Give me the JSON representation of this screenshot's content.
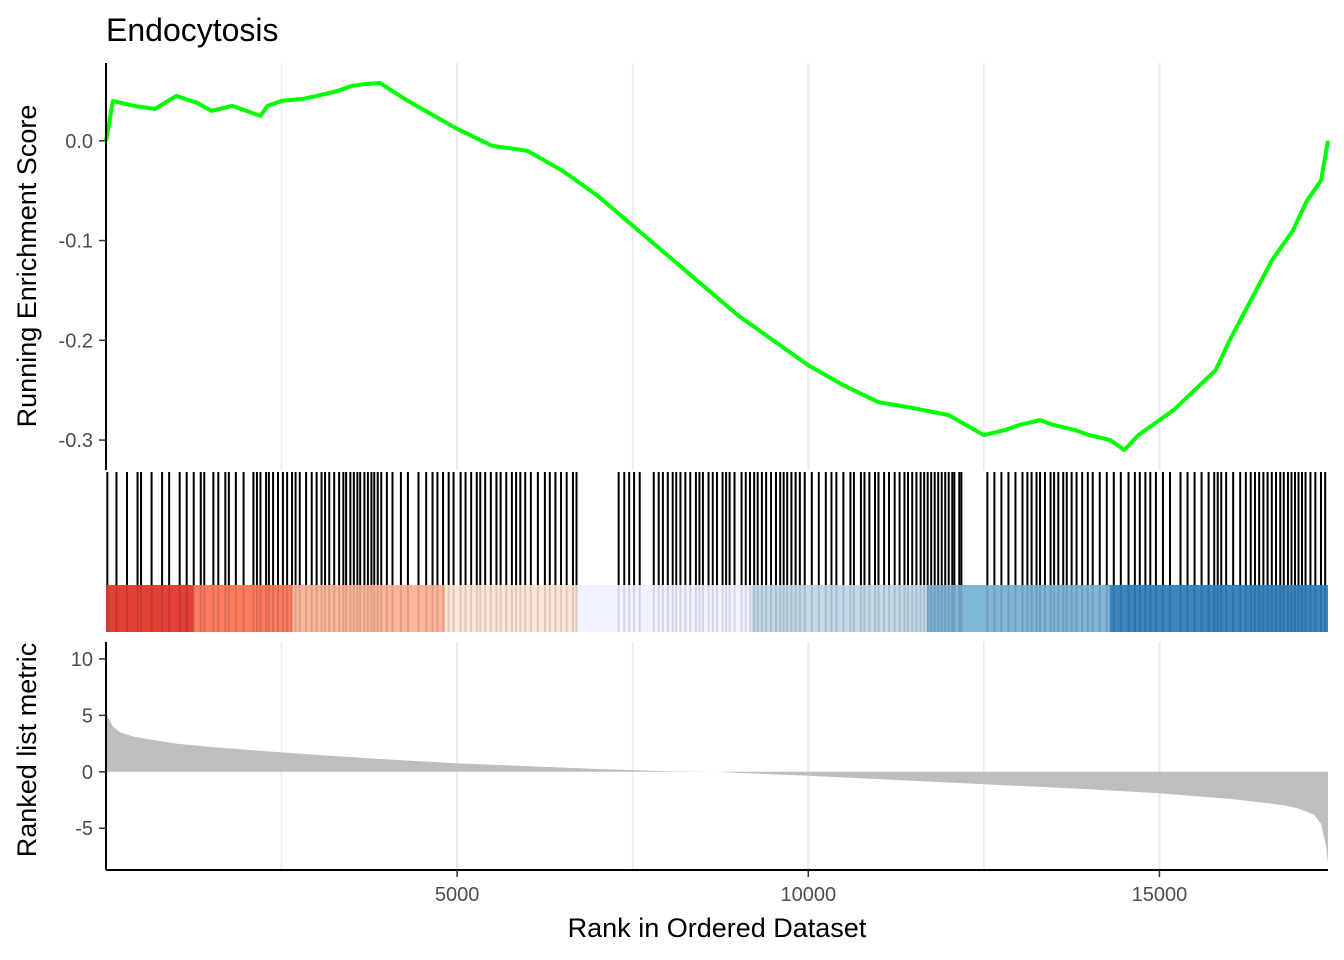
{
  "chart_data": {
    "type": "line",
    "title": "Endocytosis",
    "xlabel": "Rank in Ordered Dataset",
    "xlim": [
      1,
      17400
    ],
    "xticks": [
      5000,
      10000,
      15000
    ],
    "xtick_labels": [
      "5000",
      "10000",
      "15000"
    ],
    "grid": "vertical major and minor lines",
    "panels": [
      {
        "name": "running_enrichment_score",
        "ylabel": "Running Enrichment Score",
        "ylim": [
          -0.33,
          0.078
        ],
        "yticks": [
          0.0,
          -0.1,
          -0.2,
          -0.3
        ],
        "ytick_labels": [
          "0.0",
          "-0.1",
          "-0.2",
          "-0.3"
        ],
        "line_color": "#00FF00",
        "x": [
          1,
          100,
          400,
          700,
          1000,
          1300,
          1500,
          1800,
          2000,
          2200,
          2300,
          2500,
          2800,
          3000,
          3300,
          3500,
          3700,
          3900,
          4300,
          4600,
          5000,
          5500,
          6000,
          6500,
          7000,
          7500,
          8000,
          8500,
          9000,
          9500,
          10000,
          10500,
          11000,
          11500,
          12000,
          12500,
          12800,
          13000,
          13300,
          13500,
          13800,
          14000,
          14300,
          14500,
          14700,
          14900,
          15200,
          15500,
          15800,
          16000,
          16300,
          16600,
          16900,
          17100,
          17300,
          17400
        ],
        "y": [
          0.0,
          0.04,
          0.035,
          0.032,
          0.045,
          0.038,
          0.03,
          0.035,
          0.03,
          0.025,
          0.035,
          0.04,
          0.042,
          0.045,
          0.05,
          0.055,
          0.057,
          0.058,
          0.04,
          0.028,
          0.012,
          -0.005,
          -0.01,
          -0.03,
          -0.055,
          -0.085,
          -0.115,
          -0.145,
          -0.175,
          -0.2,
          -0.225,
          -0.245,
          -0.262,
          -0.268,
          -0.275,
          -0.295,
          -0.29,
          -0.285,
          -0.28,
          -0.285,
          -0.29,
          -0.295,
          -0.3,
          -0.31,
          -0.295,
          -0.285,
          -0.27,
          -0.25,
          -0.23,
          -0.2,
          -0.16,
          -0.12,
          -0.09,
          -0.06,
          -0.04,
          0.0
        ]
      },
      {
        "name": "gene_hits",
        "description_marks": "vertical tick at rank of each gene in set",
        "hit_ranks": [
          20,
          150,
          300,
          450,
          500,
          650,
          800,
          900,
          1050,
          1150,
          1250,
          1350,
          1400,
          1530,
          1600,
          1700,
          1750,
          1850,
          1960,
          2100,
          2150,
          2200,
          2280,
          2320,
          2380,
          2450,
          2520,
          2580,
          2650,
          2700,
          2760,
          2850,
          2930,
          3000,
          3070,
          3120,
          3180,
          3250,
          3320,
          3380,
          3420,
          3480,
          3530,
          3580,
          3620,
          3680,
          3730,
          3780,
          3820,
          3870,
          3920,
          4000,
          4080,
          4200,
          4300,
          4450,
          4560,
          4650,
          4720,
          4800,
          4880,
          4950,
          5050,
          5120,
          5200,
          5280,
          5330,
          5400,
          5480,
          5560,
          5620,
          5700,
          5780,
          5840,
          5900,
          5970,
          6050,
          6150,
          6250,
          6320,
          6400,
          6480,
          6560,
          6650,
          6700,
          7300,
          7380,
          7450,
          7520,
          7600,
          7800,
          7870,
          7930,
          8000,
          8070,
          8120,
          8180,
          8250,
          8320,
          8400,
          8450,
          8500,
          8580,
          8640,
          8700,
          8780,
          8830,
          8880,
          8950,
          9050,
          9110,
          9170,
          9230,
          9280,
          9340,
          9400,
          9470,
          9540,
          9600,
          9650,
          9700,
          9760,
          9820,
          9880,
          9950,
          10050,
          10150,
          10250,
          10330,
          10400,
          10500,
          10600,
          10650,
          10750,
          10800,
          10870,
          10950,
          11000,
          11080,
          11150,
          11230,
          11300,
          11370,
          11420,
          11480,
          11540,
          11600,
          11650,
          11700,
          11750,
          11800,
          11850,
          11900,
          11950,
          12000,
          12050,
          12080,
          12150,
          12180,
          12550,
          12650,
          12750,
          12850,
          12950,
          13050,
          13120,
          13180,
          13250,
          13300,
          13370,
          13450,
          13500,
          13560,
          13630,
          13680,
          13750,
          13820,
          13900,
          13980,
          14050,
          14150,
          14250,
          14350,
          14450,
          14560,
          14650,
          14720,
          14800,
          14870,
          14950,
          15050,
          15150,
          15300,
          15400,
          15500,
          15600,
          15700,
          15780,
          15830,
          15880,
          15950,
          16050,
          16150,
          16230,
          16300,
          16360,
          16420,
          16480,
          16540,
          16600,
          16660,
          16720,
          16770,
          16830,
          16880,
          16930,
          16980,
          17030,
          17080,
          17150,
          17220,
          17300,
          17360
        ]
      },
      {
        "name": "rank_color_band",
        "segments": [
          {
            "from": 1,
            "to": 1250,
            "color": "#E34036"
          },
          {
            "from": 1250,
            "to": 2650,
            "color": "#FC7C5F"
          },
          {
            "from": 2650,
            "to": 4830,
            "color": "#FDB59C"
          },
          {
            "from": 4830,
            "to": 6720,
            "color": "#FDE4D8"
          },
          {
            "from": 6720,
            "to": 9190,
            "color": "#EFF3FF"
          },
          {
            "from": 9190,
            "to": 11690,
            "color": "#C2DAE8"
          },
          {
            "from": 11690,
            "to": 14290,
            "color": "#7FB6DA"
          },
          {
            "from": 14290,
            "to": 17400,
            "color": "#3B85C0"
          }
        ]
      },
      {
        "name": "ranked_list_metric",
        "ylabel": "Ranked list metric",
        "ylim": [
          -8.7,
          11.5
        ],
        "yticks": [
          10,
          5,
          0,
          -5
        ],
        "ytick_labels": [
          "10",
          "5",
          "0",
          "-5"
        ],
        "fill_color": "#BEBEBE",
        "x": [
          1,
          30,
          100,
          200,
          400,
          700,
          1000,
          1500,
          2000,
          3000,
          4000,
          5000,
          6000,
          7000,
          8000,
          8700,
          9000,
          10000,
          11000,
          12000,
          13000,
          14000,
          15000,
          15500,
          16000,
          16500,
          16800,
          17000,
          17200,
          17300,
          17370,
          17400
        ],
        "y": [
          5.3,
          4.8,
          4.0,
          3.5,
          3.1,
          2.8,
          2.5,
          2.2,
          1.95,
          1.5,
          1.1,
          0.75,
          0.5,
          0.25,
          0.05,
          0.0,
          -0.1,
          -0.35,
          -0.65,
          -0.95,
          -1.25,
          -1.55,
          -1.9,
          -2.15,
          -2.4,
          -2.75,
          -3.0,
          -3.3,
          -3.8,
          -4.6,
          -6.5,
          -8.1
        ]
      }
    ]
  }
}
